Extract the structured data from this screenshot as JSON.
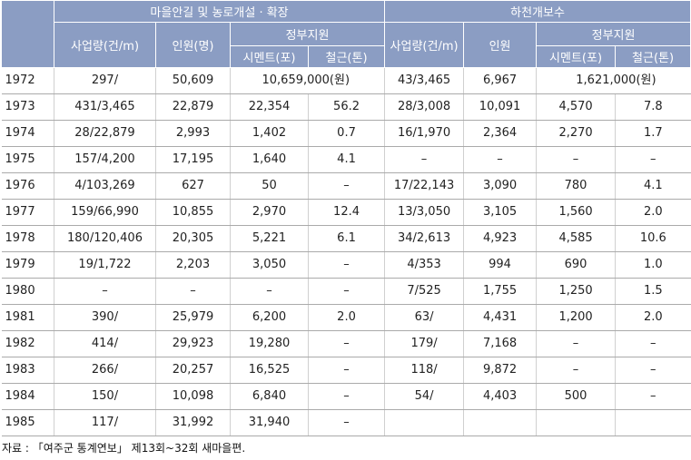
{
  "headers": {
    "group1": "마을안길 및 농로개설 · 확장",
    "group2": "하천개보수",
    "amount": "사업량(건/m)",
    "people1": "인원(명)",
    "people2": "인원",
    "support": "정부지원",
    "cement": "시멘트(포)",
    "steel": "철근(톤)"
  },
  "rows": [
    {
      "year": "1972",
      "a1": "297/",
      "p1": "50,609",
      "gov1": "10,659,000(원)",
      "a2": "43/3,465",
      "p2": "6,967",
      "gov2": "1,621,000(원)"
    },
    {
      "year": "1973",
      "a1": "431/3,465",
      "p1": "22,879",
      "c1": "22,354",
      "s1": "56.2",
      "a2": "28/3,008",
      "p2": "10,091",
      "c2": "4,570",
      "s2": "7.8"
    },
    {
      "year": "1974",
      "a1": "28/22,879",
      "p1": "2,993",
      "c1": "1,402",
      "s1": "0.7",
      "a2": "16/1,970",
      "p2": "2,364",
      "c2": "2,270",
      "s2": "1.7"
    },
    {
      "year": "1975",
      "a1": "157/4,200",
      "p1": "17,195",
      "c1": "1,640",
      "s1": "4.1",
      "a2": "–",
      "p2": "–",
      "c2": "–",
      "s2": "–"
    },
    {
      "year": "1976",
      "a1": "4/103,269",
      "p1": "627",
      "c1": "50",
      "s1": "–",
      "a2": "17/22,143",
      "p2": "3,090",
      "c2": "780",
      "s2": "4.1"
    },
    {
      "year": "1977",
      "a1": "159/66,990",
      "p1": "10,855",
      "c1": "2,970",
      "s1": "12.4",
      "a2": "13/3,050",
      "p2": "3,105",
      "c2": "1,560",
      "s2": "2.0"
    },
    {
      "year": "1978",
      "a1": "180/120,406",
      "p1": "20,305",
      "c1": "5,221",
      "s1": "6.1",
      "a2": "34/2,613",
      "p2": "4,923",
      "c2": "4,585",
      "s2": "10.6"
    },
    {
      "year": "1979",
      "a1": "19/1,722",
      "p1": "2,203",
      "c1": "3,050",
      "s1": "–",
      "a2": "4/353",
      "p2": "994",
      "c2": "690",
      "s2": "1.0"
    },
    {
      "year": "1980",
      "a1": "–",
      "p1": "–",
      "c1": "–",
      "s1": "–",
      "a2": "7/525",
      "p2": "1,755",
      "c2": "1,250",
      "s2": "1.5"
    },
    {
      "year": "1981",
      "a1": "390/",
      "p1": "25,979",
      "c1": "6,200",
      "s1": "2.0",
      "a2": "63/",
      "p2": "4,431",
      "c2": "1,200",
      "s2": "2.0"
    },
    {
      "year": "1982",
      "a1": "414/",
      "p1": "29,923",
      "c1": "19,280",
      "s1": "–",
      "a2": "179/",
      "p2": "7,168",
      "c2": "–",
      "s2": "–"
    },
    {
      "year": "1983",
      "a1": "266/",
      "p1": "20,257",
      "c1": "16,525",
      "s1": "–",
      "a2": "118/",
      "p2": "9,872",
      "c2": "–",
      "s2": "–"
    },
    {
      "year": "1984",
      "a1": "150/",
      "p1": "10,098",
      "c1": "6,840",
      "s1": "–",
      "a2": "54/",
      "p2": "4,403",
      "c2": "500",
      "s2": "–"
    },
    {
      "year": "1985",
      "a1": "117/",
      "p1": "31,992",
      "c1": "31,940",
      "s1": "–",
      "a2": "",
      "p2": "",
      "c2": "",
      "s2": ""
    }
  ],
  "source": "자료 : 「여주군 통계연보」 제13회~32회 새마을편."
}
